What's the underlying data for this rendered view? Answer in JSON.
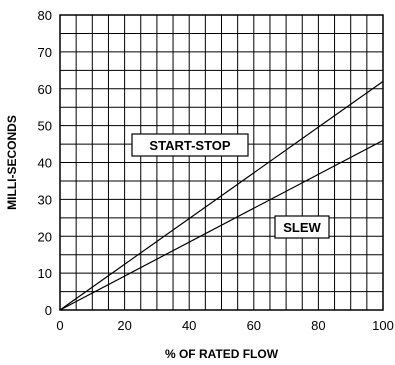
{
  "chart_data": {
    "type": "line",
    "title": "",
    "xlabel": "% OF RATED FLOW",
    "ylabel": "MILLI-SECONDS",
    "xlim": [
      0,
      100
    ],
    "ylim": [
      0,
      80
    ],
    "x_ticks": [
      0,
      20,
      40,
      60,
      80,
      100
    ],
    "y_ticks": [
      0,
      10,
      20,
      30,
      40,
      50,
      60,
      70,
      80
    ],
    "x_tick_labels": [
      "0",
      "20",
      "40",
      "60",
      "80",
      "100"
    ],
    "y_tick_labels": [
      "0",
      "10",
      "20",
      "30",
      "40",
      "50",
      "60",
      "70",
      "80"
    ],
    "grid": true,
    "grid_x_step": 5,
    "grid_y_step": 5,
    "legend": "none",
    "series": [
      {
        "name": "START-STOP",
        "x": [
          0,
          100
        ],
        "y": [
          0,
          62
        ]
      },
      {
        "name": "SLEW",
        "x": [
          0,
          100
        ],
        "y": [
          0,
          46
        ]
      }
    ],
    "annotations": [
      {
        "text": "START-STOP",
        "series": 0
      },
      {
        "text": "SLEW",
        "series": 1
      }
    ]
  }
}
